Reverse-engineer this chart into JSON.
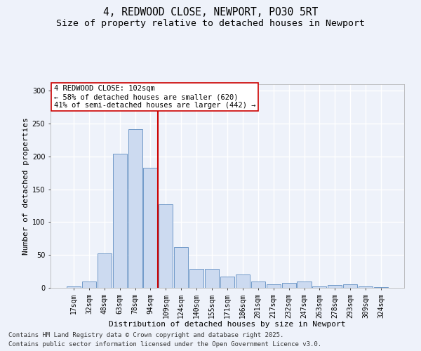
{
  "title_line1": "4, REDWOOD CLOSE, NEWPORT, PO30 5RT",
  "title_line2": "Size of property relative to detached houses in Newport",
  "xlabel": "Distribution of detached houses by size in Newport",
  "ylabel": "Number of detached properties",
  "bar_labels": [
    "17sqm",
    "32sqm",
    "48sqm",
    "63sqm",
    "78sqm",
    "94sqm",
    "109sqm",
    "124sqm",
    "140sqm",
    "155sqm",
    "171sqm",
    "186sqm",
    "201sqm",
    "217sqm",
    "232sqm",
    "247sqm",
    "263sqm",
    "278sqm",
    "293sqm",
    "309sqm",
    "324sqm"
  ],
  "bar_values": [
    2,
    10,
    52,
    204,
    242,
    183,
    127,
    62,
    29,
    29,
    17,
    20,
    10,
    5,
    7,
    10,
    2,
    4,
    5,
    2,
    1
  ],
  "bar_color": "#ccdaf0",
  "bar_edge_color": "#7099c8",
  "vline_color": "#cc0000",
  "annotation_text": "4 REDWOOD CLOSE: 102sqm\n← 58% of detached houses are smaller (620)\n41% of semi-detached houses are larger (442) →",
  "annotation_box_facecolor": "#ffffff",
  "annotation_box_edgecolor": "#cc0000",
  "ylim": [
    0,
    310
  ],
  "yticks": [
    0,
    50,
    100,
    150,
    200,
    250,
    300
  ],
  "background_color": "#eef2fa",
  "grid_color": "#ffffff",
  "footer_line1": "Contains HM Land Registry data © Crown copyright and database right 2025.",
  "footer_line2": "Contains public sector information licensed under the Open Government Licence v3.0.",
  "title_fontsize": 10.5,
  "subtitle_fontsize": 9.5,
  "axis_label_fontsize": 8,
  "tick_fontsize": 7,
  "annotation_fontsize": 7.5,
  "footer_fontsize": 6.5
}
